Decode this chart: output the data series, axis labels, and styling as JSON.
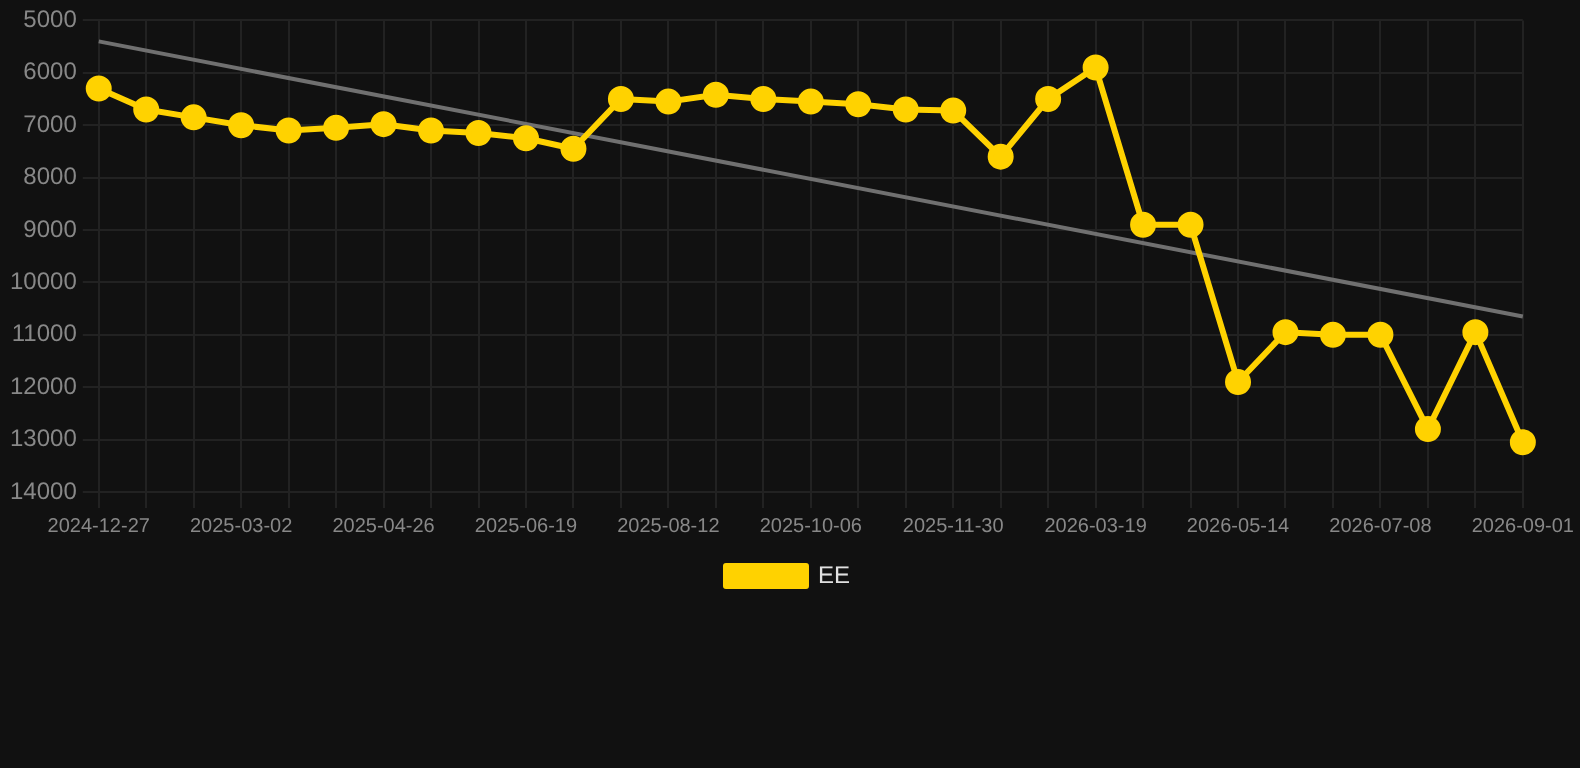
{
  "chart_data": {
    "type": "line",
    "categories": [
      "2024-12-27",
      null,
      null,
      "2025-03-02",
      null,
      null,
      "2025-04-26",
      null,
      null,
      "2025-06-19",
      null,
      null,
      "2025-08-12",
      null,
      null,
      "2025-10-06",
      null,
      null,
      "2025-11-30",
      null,
      null,
      "2026-03-19",
      null,
      null,
      "2026-05-14",
      null,
      null,
      "2026-07-08",
      null,
      null,
      "2026-09-01"
    ],
    "series": [
      {
        "name": "EE",
        "color": "#ffd200",
        "marker": "circle",
        "values": [
          6300,
          6700,
          6850,
          7000,
          7100,
          7050,
          6980,
          7100,
          7150,
          7250,
          7450,
          6500,
          6550,
          6420,
          6500,
          6550,
          6600,
          6700,
          6720,
          7600,
          6500,
          5900,
          8900,
          8900,
          11900,
          10950,
          11000,
          11000,
          12800,
          10950,
          13050
        ]
      },
      {
        "type": "line",
        "color": "#707070",
        "marker": "none",
        "values": [
          5400,
          null,
          null,
          null,
          null,
          null,
          null,
          null,
          null,
          null,
          null,
          null,
          null,
          null,
          null,
          null,
          null,
          null,
          null,
          null,
          null,
          null,
          null,
          null,
          null,
          null,
          null,
          null,
          null,
          null,
          10650
        ]
      }
    ],
    "ylim": [
      14000,
      5000
    ],
    "yticks": [
      5000,
      6000,
      7000,
      8000,
      9000,
      10000,
      11000,
      12000,
      13000,
      14000
    ],
    "grid": true,
    "legend": "bottom"
  }
}
